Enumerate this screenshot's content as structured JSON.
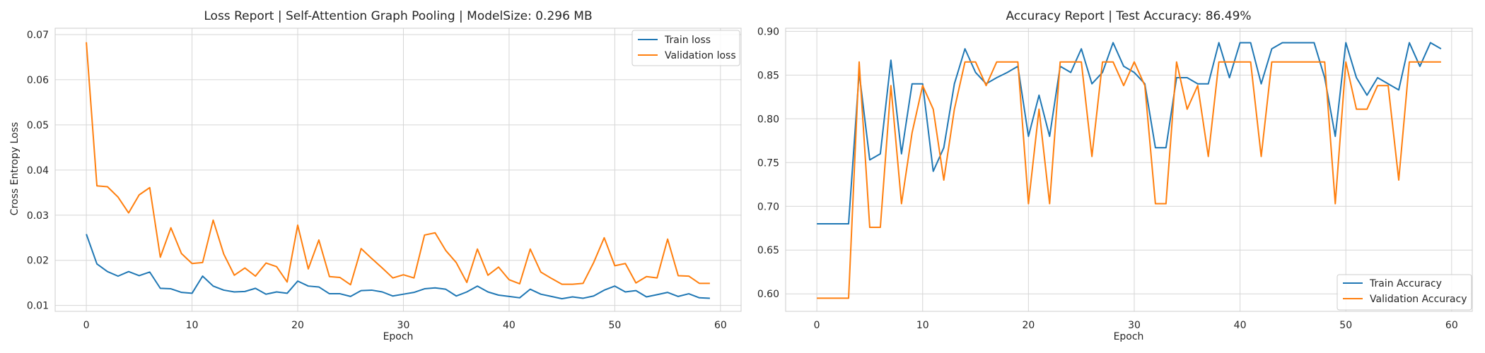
{
  "chart_data": [
    {
      "type": "line",
      "title": "Loss Report | Self-Attention Graph Pooling | ModelSize: 0.296 MB",
      "xlabel": "Epoch",
      "ylabel": "Cross Entropy Loss",
      "xlim": [
        -2.95,
        61.95
      ],
      "ylim": [
        0.0087,
        0.0714
      ],
      "xticks": [
        0,
        10,
        20,
        30,
        40,
        50,
        60
      ],
      "xtick_labels": [
        "0",
        "10",
        "20",
        "30",
        "40",
        "50",
        "60"
      ],
      "yticks": [
        0.01,
        0.02,
        0.03,
        0.04,
        0.05,
        0.06,
        0.07
      ],
      "ytick_labels": [
        "0.01",
        "0.02",
        "0.03",
        "0.04",
        "0.05",
        "0.06",
        "0.07"
      ],
      "grid": true,
      "legend_position": "top-right",
      "series": [
        {
          "name": "Train loss",
          "color": "#1f77b4",
          "values": [
            0.0258,
            0.0192,
            0.0175,
            0.0165,
            0.0175,
            0.0166,
            0.0174,
            0.0138,
            0.0137,
            0.0129,
            0.0127,
            0.0165,
            0.0143,
            0.0134,
            0.013,
            0.0131,
            0.0138,
            0.0125,
            0.013,
            0.0127,
            0.0154,
            0.0143,
            0.0141,
            0.0126,
            0.0126,
            0.012,
            0.0133,
            0.0134,
            0.013,
            0.0121,
            0.0125,
            0.0129,
            0.0137,
            0.0139,
            0.0136,
            0.0121,
            0.013,
            0.0143,
            0.013,
            0.0123,
            0.012,
            0.0117,
            0.0136,
            0.0125,
            0.012,
            0.0115,
            0.0119,
            0.0116,
            0.0121,
            0.0134,
            0.0143,
            0.013,
            0.0133,
            0.0119,
            0.0124,
            0.0129,
            0.012,
            0.0126,
            0.0117,
            0.0116
          ]
        },
        {
          "name": "Validation loss",
          "color": "#ff7f0e",
          "values": [
            0.0683,
            0.0365,
            0.0363,
            0.034,
            0.0305,
            0.0345,
            0.0361,
            0.0207,
            0.0272,
            0.0215,
            0.0193,
            0.0195,
            0.0289,
            0.0214,
            0.0167,
            0.0183,
            0.0165,
            0.0194,
            0.0186,
            0.0152,
            0.0278,
            0.0181,
            0.0245,
            0.0164,
            0.0162,
            0.0146,
            0.0226,
            0.0204,
            0.0183,
            0.0161,
            0.0168,
            0.0161,
            0.0256,
            0.0261,
            0.0222,
            0.0195,
            0.0151,
            0.0225,
            0.0167,
            0.0185,
            0.0157,
            0.0148,
            0.0225,
            0.0174,
            0.016,
            0.0147,
            0.0147,
            0.0149,
            0.0195,
            0.025,
            0.0188,
            0.0193,
            0.015,
            0.0164,
            0.0161,
            0.0247,
            0.0166,
            0.0165,
            0.0149,
            0.0149
          ]
        }
      ]
    },
    {
      "type": "line",
      "title": "Accuracy Report | Test Accuracy: 86.49%",
      "xlabel": "Epoch",
      "ylabel": "",
      "xlim": [
        -2.95,
        61.95
      ],
      "ylim": [
        0.58,
        0.9035
      ],
      "xticks": [
        0,
        10,
        20,
        30,
        40,
        50,
        60
      ],
      "xtick_labels": [
        "0",
        "10",
        "20",
        "30",
        "40",
        "50",
        "60"
      ],
      "yticks": [
        0.6,
        0.65,
        0.7,
        0.75,
        0.8,
        0.85,
        0.9
      ],
      "ytick_labels": [
        "0.60",
        "0.65",
        "0.70",
        "0.75",
        "0.80",
        "0.85",
        "0.90"
      ],
      "grid": true,
      "legend_position": "bottom-right",
      "series": [
        {
          "name": "Train Accuracy",
          "color": "#1f77b4",
          "values": [
            0.68,
            0.68,
            0.68,
            0.68,
            0.853,
            0.753,
            0.76,
            0.867,
            0.76,
            0.84,
            0.84,
            0.74,
            0.767,
            0.84,
            0.88,
            0.853,
            0.84,
            0.847,
            0.853,
            0.86,
            0.78,
            0.827,
            0.78,
            0.86,
            0.853,
            0.88,
            0.84,
            0.853,
            0.887,
            0.86,
            0.853,
            0.84,
            0.767,
            0.767,
            0.847,
            0.847,
            0.84,
            0.84,
            0.887,
            0.847,
            0.887,
            0.887,
            0.84,
            0.88,
            0.887,
            0.887,
            0.887,
            0.887,
            0.847,
            0.78,
            0.887,
            0.847,
            0.827,
            0.847,
            0.84,
            0.833,
            0.887,
            0.86,
            0.887,
            0.88
          ]
        },
        {
          "name": "Validation Accuracy",
          "color": "#ff7f0e",
          "values": [
            0.595,
            0.595,
            0.595,
            0.595,
            0.865,
            0.676,
            0.676,
            0.838,
            0.703,
            0.784,
            0.838,
            0.811,
            0.73,
            0.811,
            0.865,
            0.865,
            0.838,
            0.865,
            0.865,
            0.865,
            0.703,
            0.811,
            0.703,
            0.865,
            0.865,
            0.865,
            0.757,
            0.865,
            0.865,
            0.838,
            0.865,
            0.838,
            0.703,
            0.703,
            0.865,
            0.811,
            0.838,
            0.757,
            0.865,
            0.865,
            0.865,
            0.865,
            0.757,
            0.865,
            0.865,
            0.865,
            0.865,
            0.865,
            0.865,
            0.703,
            0.865,
            0.811,
            0.811,
            0.838,
            0.838,
            0.73,
            0.865,
            0.865,
            0.865,
            0.865
          ]
        }
      ]
    }
  ]
}
